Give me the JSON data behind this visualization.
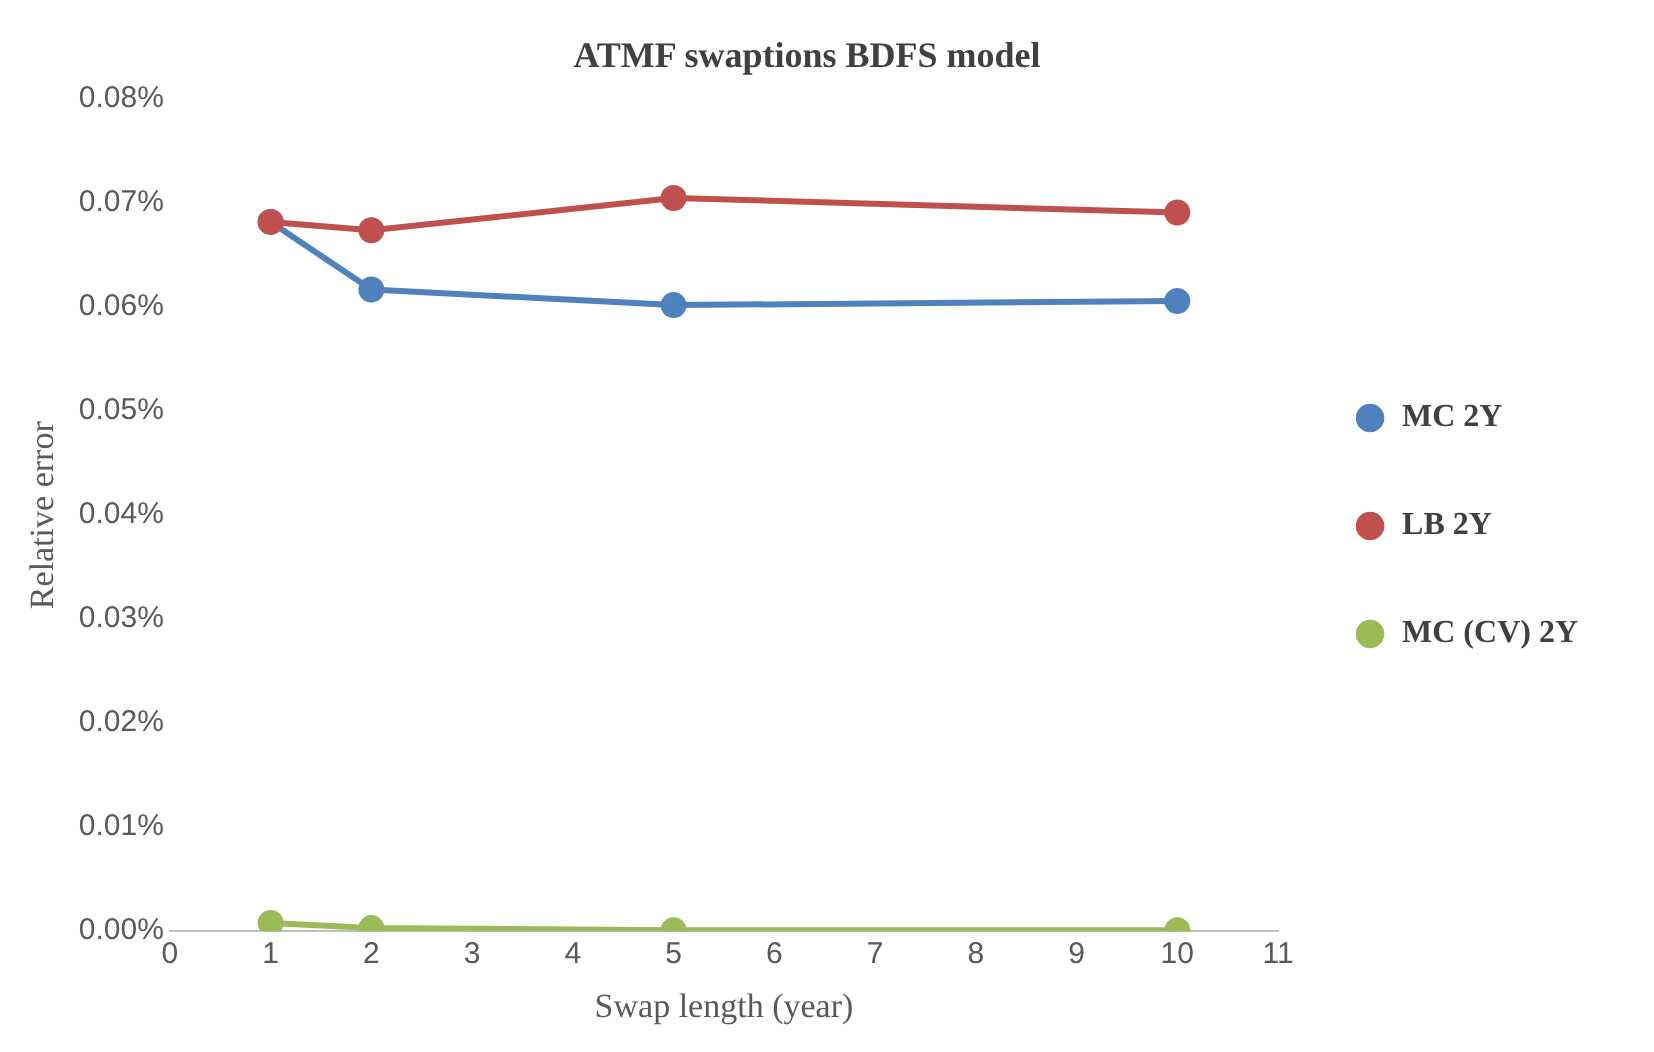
{
  "chart_data": {
    "type": "line",
    "title": "ATMF swaptions BDFS model",
    "xlabel": "Swap length (year)",
    "ylabel": "Relative error",
    "x": [
      1,
      2,
      5,
      10
    ],
    "series": [
      {
        "name": "MC 2Y",
        "color": "#4f81bd",
        "values": [
          0.0682,
          0.0617,
          0.0602,
          0.0606
        ]
      },
      {
        "name": "LB 2Y",
        "color": "#c0504d",
        "values": [
          0.0682,
          0.0674,
          0.0705,
          0.0691
        ]
      },
      {
        "name": "MC (CV) 2Y",
        "color": "#9bbb59",
        "values": [
          0.0008,
          0.0003,
          0.0001,
          0.0001
        ]
      }
    ],
    "xlim": [
      0,
      11
    ],
    "xticks": [
      0,
      1,
      2,
      3,
      4,
      5,
      6,
      7,
      8,
      9,
      10,
      11
    ],
    "ylim": [
      0,
      0.08
    ],
    "yticks": [
      {
        "value": 0,
        "label": "0.00%"
      },
      {
        "value": 0.01,
        "label": "0.01%"
      },
      {
        "value": 0.02,
        "label": "0.02%"
      },
      {
        "value": 0.03,
        "label": "0.03%"
      },
      {
        "value": 0.04,
        "label": "0.04%"
      },
      {
        "value": 0.05,
        "label": "0.05%"
      },
      {
        "value": 0.06,
        "label": "0.06%"
      },
      {
        "value": 0.07,
        "label": "0.07%"
      },
      {
        "value": 0.08,
        "label": "0.08%"
      }
    ],
    "grid": false,
    "legend": "right",
    "marker": "circle",
    "line_style": "solid"
  }
}
